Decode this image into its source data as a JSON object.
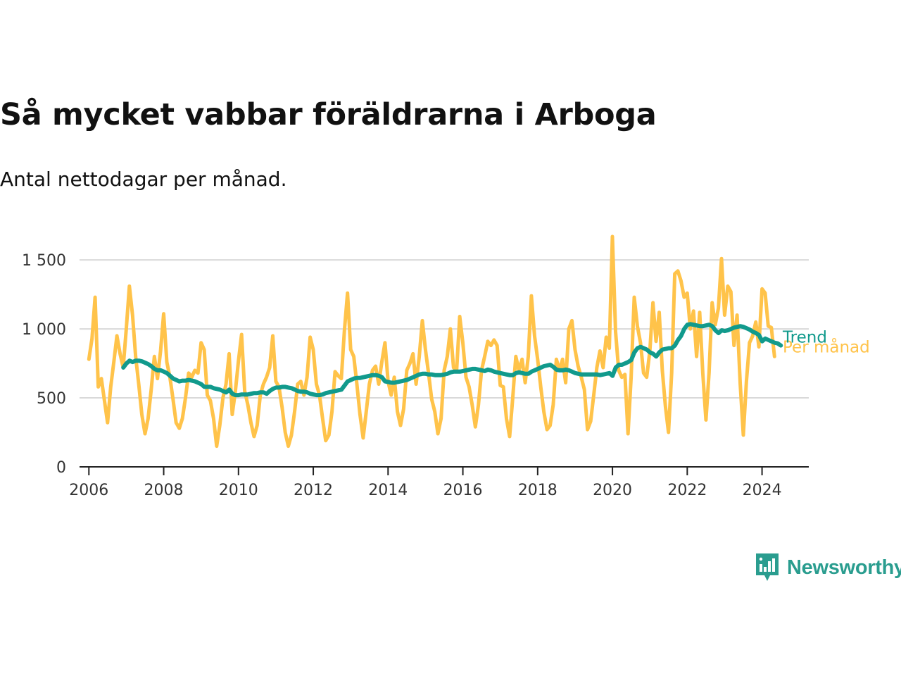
{
  "header": {
    "title": "Så mycket vabbar föräldrarna i Arboga",
    "subtitle": "Antal nettodagar per månad."
  },
  "brand": {
    "name": "Newsworthy",
    "icon": "newsworthy-logo-icon",
    "color": "#2a9d8f"
  },
  "colors": {
    "monthly": "#ffc34a",
    "trend": "#119a8c",
    "grid": "#d9d9d9",
    "axis": "#222222"
  },
  "chart_data": {
    "type": "line",
    "title": "Så mycket vabbar föräldrarna i Arboga",
    "subtitle": "Antal nettodagar per månad.",
    "xlabel": "",
    "ylabel": "",
    "x_range": [
      2005.75,
      2025.25
    ],
    "ylim": [
      0,
      1700
    ],
    "y_ticks": [
      {
        "value": 0,
        "label": "0"
      },
      {
        "value": 500,
        "label": "500"
      },
      {
        "value": 1000,
        "label": "1 000"
      },
      {
        "value": 1500,
        "label": "1 500"
      }
    ],
    "x_ticks": [
      2006,
      2008,
      2010,
      2012,
      2014,
      2016,
      2018,
      2020,
      2022,
      2024
    ],
    "grid": true,
    "legend": "direct labels at line ends",
    "series": [
      {
        "name": "Per månad",
        "color": "#ffc34a",
        "start": 2006.0,
        "step": 0.08333,
        "values": [
          780,
          930,
          1230,
          580,
          640,
          480,
          320,
          580,
          760,
          950,
          820,
          720,
          1000,
          1310,
          1100,
          800,
          600,
          380,
          240,
          350,
          560,
          800,
          640,
          840,
          1110,
          760,
          650,
          490,
          320,
          280,
          350,
          500,
          680,
          650,
          700,
          680,
          900,
          850,
          520,
          480,
          350,
          150,
          300,
          500,
          600,
          820,
          380,
          550,
          770,
          960,
          550,
          450,
          320,
          220,
          300,
          520,
          600,
          650,
          720,
          950,
          620,
          580,
          430,
          250,
          150,
          230,
          400,
          600,
          620,
          520,
          650,
          940,
          850,
          600,
          520,
          350,
          190,
          230,
          400,
          690,
          660,
          640,
          990,
          1260,
          850,
          800,
          600,
          380,
          210,
          400,
          600,
          700,
          730,
          600,
          760,
          900,
          620,
          520,
          650,
          400,
          300,
          420,
          700,
          750,
          820,
          600,
          800,
          1060,
          850,
          680,
          490,
          400,
          240,
          350,
          700,
          800,
          1000,
          720,
          700,
          1090,
          900,
          650,
          580,
          450,
          290,
          450,
          700,
          800,
          910,
          880,
          920,
          880,
          590,
          580,
          350,
          220,
          500,
          800,
          700,
          780,
          610,
          800,
          1240,
          950,
          780,
          580,
          400,
          270,
          300,
          450,
          780,
          700,
          780,
          610,
          1000,
          1060,
          850,
          730,
          650,
          560,
          270,
          330,
          520,
          720,
          840,
          720,
          940,
          860,
          1670,
          980,
          700,
          650,
          670,
          240,
          650,
          1230,
          1020,
          900,
          680,
          650,
          840,
          1190,
          910,
          1120,
          700,
          440,
          250,
          680,
          1400,
          1420,
          1350,
          1230,
          1260,
          1000,
          1130,
          800,
          1120,
          680,
          340,
          680,
          1190,
          1030,
          1150,
          1510,
          1100,
          1310,
          1270,
          880,
          1100,
          600,
          230,
          620,
          900,
          950,
          1050,
          870,
          1290,
          1260,
          1020,
          1010,
          800
        ]
      },
      {
        "name": "Trend",
        "color": "#119a8c",
        "start": 2006.92,
        "step": 0.08333,
        "values": [
          720,
          750,
          770,
          760,
          770,
          770,
          765,
          755,
          745,
          730,
          710,
          700,
          700,
          690,
          680,
          660,
          640,
          630,
          620,
          625,
          625,
          630,
          625,
          620,
          610,
          600,
          580,
          580,
          580,
          570,
          565,
          560,
          550,
          540,
          560,
          530,
          520,
          520,
          525,
          525,
          525,
          530,
          535,
          535,
          540,
          540,
          530,
          550,
          565,
          575,
          575,
          580,
          580,
          575,
          570,
          560,
          550,
          545,
          545,
          540,
          530,
          525,
          520,
          520,
          525,
          535,
          540,
          545,
          550,
          555,
          560,
          590,
          620,
          630,
          640,
          645,
          645,
          650,
          655,
          660,
          665,
          665,
          660,
          650,
          620,
          615,
          610,
          610,
          615,
          620,
          625,
          630,
          640,
          650,
          660,
          670,
          675,
          675,
          670,
          670,
          665,
          665,
          665,
          670,
          675,
          685,
          690,
          690,
          690,
          695,
          700,
          705,
          710,
          710,
          705,
          700,
          695,
          705,
          700,
          690,
          685,
          680,
          675,
          670,
          665,
          665,
          680,
          685,
          680,
          675,
          675,
          690,
          700,
          710,
          720,
          730,
          735,
          740,
          725,
          705,
          700,
          700,
          705,
          700,
          690,
          680,
          675,
          670,
          670,
          670,
          670,
          670,
          670,
          665,
          670,
          675,
          680,
          660,
          720,
          740,
          740,
          750,
          760,
          775,
          830,
          860,
          870,
          860,
          850,
          830,
          820,
          800,
          830,
          850,
          855,
          860,
          860,
          880,
          920,
          950,
          1000,
          1030,
          1035,
          1030,
          1025,
          1020,
          1020,
          1025,
          1030,
          1020,
          990,
          970,
          990,
          985,
          990,
          1000,
          1010,
          1015,
          1020,
          1015,
          1005,
          995,
          980,
          970,
          955,
          910,
          930,
          920,
          910,
          900,
          895,
          880
        ]
      }
    ]
  }
}
